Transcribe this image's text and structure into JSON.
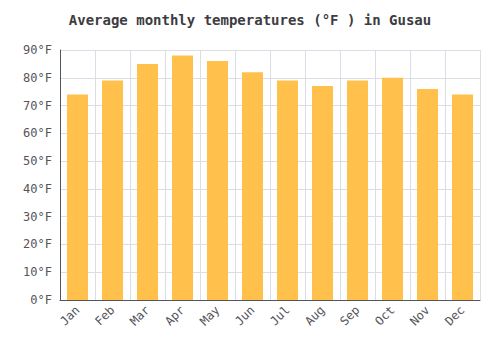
{
  "chart_data": {
    "type": "bar",
    "title": "Average monthly temperatures (°F ) in Gusau",
    "categories": [
      "Jan",
      "Feb",
      "Mar",
      "Apr",
      "May",
      "Jun",
      "Jul",
      "Aug",
      "Sep",
      "Oct",
      "Nov",
      "Dec"
    ],
    "values": [
      74,
      79,
      85,
      88,
      86,
      82,
      79,
      77,
      79,
      80,
      76,
      74
    ],
    "color": "#FFC04C",
    "ylim": [
      0,
      90
    ],
    "yticks": [
      {
        "value": 0,
        "label": "0°F"
      },
      {
        "value": 10,
        "label": "10°F"
      },
      {
        "value": 20,
        "label": "20°F"
      },
      {
        "value": 30,
        "label": "30°F"
      },
      {
        "value": 40,
        "label": "40°F"
      },
      {
        "value": 50,
        "label": "50°F"
      },
      {
        "value": 60,
        "label": "60°F"
      },
      {
        "value": 70,
        "label": "70°F"
      },
      {
        "value": 80,
        "label": "80°F"
      },
      {
        "value": 90,
        "label": "90°F"
      }
    ],
    "grid": true
  }
}
